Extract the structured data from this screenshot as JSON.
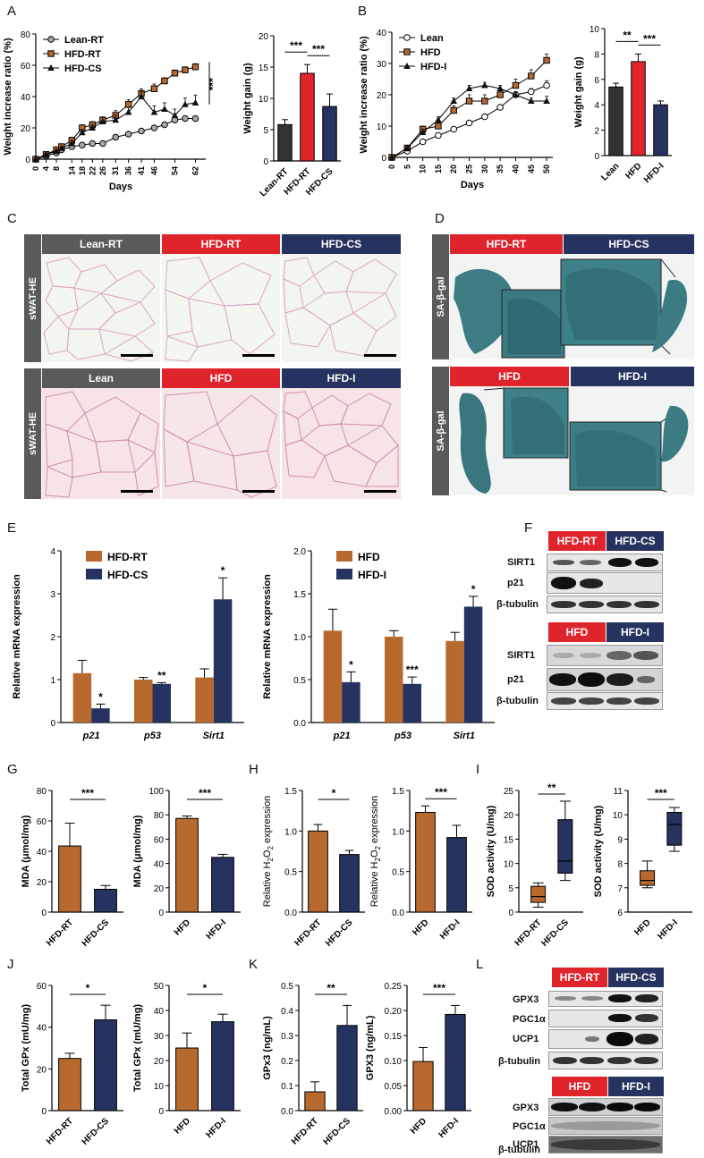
{
  "colors": {
    "orange": "#b8692e",
    "navy": "#26325f",
    "red": "#e0242b",
    "dark": "#333333",
    "grey": "#5a5a5a"
  },
  "panels": {
    "A": "A",
    "B": "B",
    "C": "C",
    "D": "D",
    "E": "E",
    "F": "F",
    "G": "G",
    "H": "H",
    "I": "I",
    "J": "J",
    "K": "K",
    "L": "L"
  },
  "histology": {
    "row1": [
      "Lean-RT",
      "HFD-RT",
      "HFD-CS"
    ],
    "row2": [
      "Lean",
      "HFD",
      "HFD-I"
    ],
    "side": "sWAT-HE"
  },
  "sa_gal": {
    "row1": [
      "HFD-RT",
      "HFD-CS"
    ],
    "row2": [
      "HFD",
      "HFD-I"
    ],
    "side": "SA-β-gal"
  },
  "western_F": {
    "top_groups": [
      "HFD-RT",
      "HFD-CS"
    ],
    "bottom_groups": [
      "HFD",
      "HFD-I"
    ],
    "proteins": [
      "SIRT1",
      "p21",
      "β-tubulin"
    ]
  },
  "western_L": {
    "top_groups": [
      "HFD-RT",
      "HFD-CS"
    ],
    "bottom_groups": [
      "HFD",
      "HFD-I"
    ],
    "proteins": [
      "GPX3",
      "PGC1α",
      "UCP1",
      "β-tubulin"
    ]
  },
  "chart_data": [
    {
      "id": "A1",
      "type": "line",
      "xlabel": "Days",
      "ylabel": "Weight increase ratio (%)",
      "xlim": [
        0,
        66
      ],
      "ylim": [
        0,
        80
      ],
      "xticks": [
        0,
        4,
        8,
        14,
        18,
        22,
        26,
        31,
        36,
        41,
        46,
        54,
        62
      ],
      "yticks": [
        0,
        20,
        40,
        60,
        80
      ],
      "legend": [
        "Lean-RT",
        "HFD-RT",
        "HFD-CS"
      ],
      "sig": "***",
      "series": [
        {
          "name": "Lean-RT",
          "marker": "circle",
          "x": [
            0,
            4,
            8,
            10,
            14,
            18,
            22,
            26,
            31,
            36,
            41,
            46,
            50,
            54,
            58,
            62
          ],
          "y": [
            0,
            2,
            4,
            6,
            8,
            9,
            10,
            10,
            14,
            16,
            18,
            20,
            22,
            25,
            26,
            26
          ],
          "err": [
            0,
            1,
            1,
            1,
            1,
            1,
            1,
            1,
            1,
            1,
            1,
            1,
            1,
            1,
            1,
            1
          ]
        },
        {
          "name": "HFD-RT",
          "marker": "square",
          "x": [
            0,
            4,
            8,
            10,
            14,
            18,
            22,
            26,
            31,
            36,
            41,
            46,
            50,
            54,
            58,
            62
          ],
          "y": [
            0,
            3,
            6,
            8,
            12,
            20,
            22,
            25,
            28,
            35,
            42,
            45,
            50,
            55,
            57,
            59
          ],
          "err": [
            0,
            1,
            1,
            1,
            2,
            2,
            2,
            2,
            3,
            3,
            3,
            3,
            2,
            2,
            2,
            2
          ]
        },
        {
          "name": "HFD-CS",
          "marker": "triangle",
          "x": [
            0,
            4,
            8,
            10,
            14,
            18,
            22,
            26,
            31,
            36,
            41,
            46,
            50,
            54,
            58,
            62
          ],
          "y": [
            0,
            3,
            5,
            7,
            10,
            17,
            20,
            24,
            25,
            30,
            40,
            30,
            32,
            28,
            35,
            36
          ],
          "err": [
            0,
            1,
            1,
            1,
            2,
            2,
            2,
            3,
            3,
            3,
            3,
            4,
            4,
            4,
            4,
            5
          ]
        }
      ]
    },
    {
      "id": "A2",
      "type": "bar",
      "ylabel": "Weight gain (g)",
      "ylim": [
        0,
        20
      ],
      "yticks": [
        0,
        5,
        10,
        15,
        20
      ],
      "categories": [
        "Lean-RT",
        "HFD-RT",
        "HFD-CS"
      ],
      "values": [
        5.8,
        14.0,
        8.7
      ],
      "errors": [
        0.8,
        1.4,
        2.0
      ],
      "sig": [
        [
          "0",
          "1",
          "***"
        ],
        [
          "1",
          "2",
          "***"
        ]
      ]
    },
    {
      "id": "B1",
      "type": "line",
      "xlabel": "Days",
      "ylabel": "Weight increase ratio (%)",
      "xlim": [
        0,
        52
      ],
      "ylim": [
        0,
        40
      ],
      "xticks": [
        0,
        5,
        10,
        15,
        20,
        25,
        30,
        35,
        40,
        45,
        50
      ],
      "yticks": [
        0,
        10,
        20,
        30,
        40
      ],
      "legend": [
        "Lean",
        "HFD",
        "HFD-I"
      ],
      "series": [
        {
          "name": "Lean",
          "marker": "open-circle",
          "x": [
            0,
            5,
            10,
            15,
            20,
            25,
            30,
            35,
            40,
            45,
            50
          ],
          "y": [
            0,
            2,
            5,
            7,
            9,
            11,
            13,
            16,
            20,
            21,
            23
          ],
          "err": [
            0,
            0.5,
            0.5,
            0.5,
            0.5,
            0.5,
            0.5,
            0.5,
            1,
            1,
            1.5
          ]
        },
        {
          "name": "HFD",
          "marker": "square",
          "x": [
            0,
            5,
            10,
            15,
            20,
            25,
            30,
            35,
            40,
            45,
            50
          ],
          "y": [
            0,
            3,
            9,
            10,
            15,
            18,
            18,
            20,
            23,
            26,
            31
          ],
          "err": [
            0,
            0.5,
            1,
            1,
            1.5,
            2,
            2,
            2,
            2,
            2,
            2
          ]
        },
        {
          "name": "HFD-I",
          "marker": "triangle",
          "x": [
            0,
            5,
            10,
            15,
            20,
            25,
            30,
            35,
            40,
            45,
            50
          ],
          "y": [
            0,
            3,
            8,
            12,
            18,
            22,
            23,
            22,
            20,
            18,
            18
          ],
          "err": [
            0,
            0.5,
            1,
            1,
            1,
            1,
            1,
            1,
            1,
            1,
            1.5
          ]
        }
      ]
    },
    {
      "id": "B2",
      "type": "bar",
      "ylabel": "Weight gain (g)",
      "ylim": [
        0,
        10
      ],
      "yticks": [
        0,
        2,
        4,
        6,
        8,
        10
      ],
      "categories": [
        "Lean",
        "HFD",
        "HFD-I"
      ],
      "values": [
        5.4,
        7.4,
        4.0
      ],
      "errors": [
        0.3,
        0.6,
        0.3
      ],
      "sig": [
        [
          "0",
          "1",
          "**"
        ],
        [
          "1",
          "2",
          "***"
        ]
      ]
    },
    {
      "id": "E1",
      "type": "bar",
      "ylabel": "Relative mRNA expression",
      "ylim": [
        0,
        4
      ],
      "yticks": [
        0,
        1,
        2,
        3,
        4
      ],
      "categories": [
        "p21",
        "p53",
        "Sirt1"
      ],
      "legend": [
        "HFD-RT",
        "HFD-CS"
      ],
      "series": [
        {
          "name": "HFD-RT",
          "values": [
            1.15,
            1.0,
            1.05
          ],
          "errors": [
            0.3,
            0.05,
            0.2
          ]
        },
        {
          "name": "HFD-CS",
          "values": [
            0.33,
            0.9,
            2.87
          ],
          "errors": [
            0.1,
            0.03,
            0.5
          ]
        }
      ],
      "stars": [
        "*",
        "**",
        "*"
      ]
    },
    {
      "id": "E2",
      "type": "bar",
      "ylabel": "Relative mRNA expression",
      "ylim": [
        0,
        2.0
      ],
      "yticks": [
        0.0,
        0.5,
        1.0,
        1.5,
        2.0
      ],
      "categories": [
        "p21",
        "p53",
        "Sirt1"
      ],
      "legend": [
        "HFD",
        "HFD-I"
      ],
      "series": [
        {
          "name": "HFD",
          "values": [
            1.07,
            1.0,
            0.95
          ],
          "errors": [
            0.25,
            0.07,
            0.1
          ]
        },
        {
          "name": "HFD-I",
          "values": [
            0.47,
            0.45,
            1.35
          ],
          "errors": [
            0.12,
            0.08,
            0.12
          ]
        }
      ],
      "stars": [
        "*",
        "***",
        "*"
      ]
    },
    {
      "id": "G1",
      "type": "bar",
      "ylabel": "MDA (μmol/mg)",
      "ylim": [
        0,
        80
      ],
      "yticks": [
        0,
        20,
        40,
        60,
        80
      ],
      "categories": [
        "HFD-RT",
        "HFD-CS"
      ],
      "values": [
        43.5,
        15.0
      ],
      "errors": [
        15,
        2.5
      ],
      "sig": "***"
    },
    {
      "id": "G2",
      "type": "bar",
      "ylabel": "MDA (μmol/mg)",
      "ylim": [
        0,
        100
      ],
      "yticks": [
        0,
        20,
        40,
        60,
        80,
        100
      ],
      "categories": [
        "HFD",
        "HFD-I"
      ],
      "values": [
        77,
        45
      ],
      "errors": [
        2,
        2.5
      ],
      "sig": "***"
    },
    {
      "id": "H1",
      "type": "bar",
      "ylabel": "Relative H2O2 expression",
      "ylim": [
        0,
        1.5
      ],
      "yticks": [
        0.0,
        0.5,
        1.0,
        1.5
      ],
      "categories": [
        "HFD-RT",
        "HFD-CS"
      ],
      "values": [
        1.0,
        0.71
      ],
      "errors": [
        0.08,
        0.05
      ],
      "sig": "*"
    },
    {
      "id": "H2",
      "type": "bar",
      "ylabel": "Relative H2O2 expression",
      "ylim": [
        0,
        1.5
      ],
      "yticks": [
        0.0,
        0.5,
        1.0,
        1.5
      ],
      "categories": [
        "HFD",
        "HFD-I"
      ],
      "values": [
        1.23,
        0.92
      ],
      "errors": [
        0.08,
        0.15
      ],
      "sig": "***"
    },
    {
      "id": "I1",
      "type": "box",
      "ylabel": "SOD activity (U/mg)",
      "ylim": [
        0,
        25
      ],
      "yticks": [
        0,
        5,
        10,
        15,
        20,
        25
      ],
      "categories": [
        "HFD-RT",
        "HFD-CS"
      ],
      "boxes": [
        {
          "min": 1.0,
          "q1": 2.0,
          "median": 3.2,
          "q3": 5.3,
          "max": 6.0
        },
        {
          "min": 6.5,
          "q1": 8.0,
          "median": 10.5,
          "q3": 19.0,
          "max": 22.8
        }
      ],
      "sig": "**"
    },
    {
      "id": "I2",
      "type": "box",
      "ylabel": "SOD activity (U/mg)",
      "ylim": [
        6,
        11
      ],
      "yticks": [
        6,
        7,
        8,
        9,
        10,
        11
      ],
      "categories": [
        "HFD",
        "HFD-I"
      ],
      "boxes": [
        {
          "min": 7.0,
          "q1": 7.1,
          "median": 7.3,
          "q3": 7.7,
          "max": 8.1
        },
        {
          "min": 8.5,
          "q1": 8.75,
          "median": 9.6,
          "q3": 10.1,
          "max": 10.3
        }
      ],
      "sig": "***"
    },
    {
      "id": "J1",
      "type": "bar",
      "ylabel": "Total GPx (mU/mg)",
      "ylim": [
        0,
        60
      ],
      "yticks": [
        0,
        20,
        40,
        60
      ],
      "categories": [
        "HFD-RT",
        "HFD-CS"
      ],
      "values": [
        25,
        43.5
      ],
      "errors": [
        2.5,
        7
      ],
      "sig": "*"
    },
    {
      "id": "J2",
      "type": "bar",
      "ylabel": "Total GPx (mU/mg)",
      "ylim": [
        0,
        50
      ],
      "yticks": [
        0,
        10,
        20,
        30,
        40,
        50
      ],
      "categories": [
        "HFD",
        "HFD-I"
      ],
      "values": [
        25,
        35.5
      ],
      "errors": [
        6,
        3
      ],
      "sig": "*"
    },
    {
      "id": "K1",
      "type": "bar",
      "ylabel": "GPx3 (ng/mL)",
      "ylim": [
        0,
        0.5
      ],
      "yticks": [
        0.0,
        0.1,
        0.2,
        0.3,
        0.4,
        0.5
      ],
      "categories": [
        "HFD-RT",
        "HFD-CS"
      ],
      "values": [
        0.075,
        0.34
      ],
      "errors": [
        0.04,
        0.08
      ],
      "sig": "**"
    },
    {
      "id": "K2",
      "type": "bar",
      "ylabel": "GPX3 (ng/mL)",
      "ylim": [
        0,
        0.25
      ],
      "yticks": [
        0.0,
        0.05,
        0.1,
        0.15,
        0.2,
        0.25
      ],
      "categories": [
        "HFD",
        "HFD-I"
      ],
      "values": [
        0.098,
        0.192
      ],
      "errors": [
        0.028,
        0.018
      ],
      "sig": "***"
    }
  ]
}
